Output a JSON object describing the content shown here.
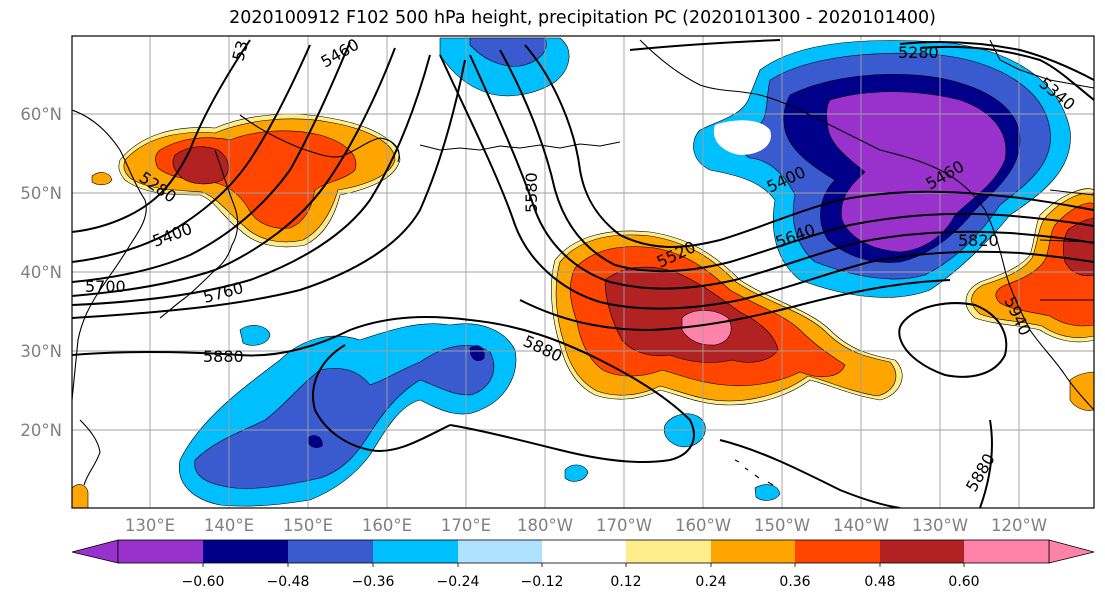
{
  "title": "2020100912 F102 500 hPa height, precipitation PC (2020101300 - 2020101400)",
  "map": {
    "lat_labels": [
      {
        "text": "60°N",
        "lat": 60
      },
      {
        "text": "50°N",
        "lat": 50
      },
      {
        "text": "40°N",
        "lat": 40
      },
      {
        "text": "30°N",
        "lat": 30
      },
      {
        "text": "20°N",
        "lat": 20
      }
    ],
    "lon_labels": [
      {
        "text": "130°E",
        "lon": 130
      },
      {
        "text": "140°E",
        "lon": 140
      },
      {
        "text": "150°E",
        "lon": 150
      },
      {
        "text": "160°E",
        "lon": 160
      },
      {
        "text": "170°E",
        "lon": 170
      },
      {
        "text": "180°W",
        "lon": 180
      },
      {
        "text": "170°W",
        "lon": 190
      },
      {
        "text": "160°W",
        "lon": 200
      },
      {
        "text": "150°W",
        "lon": 210
      },
      {
        "text": "140°W",
        "lon": 220
      },
      {
        "text": "130°W",
        "lon": 230
      },
      {
        "text": "120°W",
        "lon": 240
      }
    ],
    "contour_labels": [
      {
        "text": "5460"
      },
      {
        "text": "5280"
      },
      {
        "text": "5340"
      },
      {
        "text": "5280"
      },
      {
        "text": "5400"
      },
      {
        "text": "5580"
      },
      {
        "text": "5400"
      },
      {
        "text": "5460"
      },
      {
        "text": "5520"
      },
      {
        "text": "5640"
      },
      {
        "text": "5820"
      },
      {
        "text": "5700"
      },
      {
        "text": "5760"
      },
      {
        "text": "5880"
      },
      {
        "text": "5880"
      },
      {
        "text": "5940"
      },
      {
        "text": "5880"
      },
      {
        "text": "53"
      }
    ]
  },
  "colorbar": {
    "colors": [
      "#9932cc",
      "#00008b",
      "#3a5bcf",
      "#00bfff",
      "#b0e2ff",
      "#ffffff",
      "#ffec8b",
      "#ffa500",
      "#ff4500",
      "#b22222",
      "#ff82ab"
    ],
    "ticks": [
      "−0.60",
      "−0.48",
      "−0.36",
      "−0.24",
      "−0.12",
      "0.12",
      "0.24",
      "0.36",
      "0.48",
      "0.60"
    ]
  }
}
